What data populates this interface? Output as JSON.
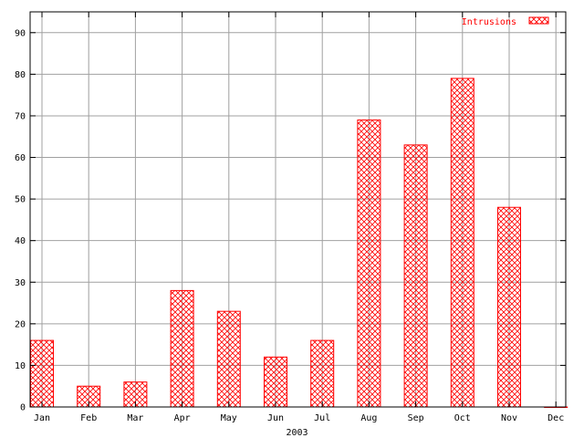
{
  "chart_data": {
    "type": "bar",
    "xlabel": "2003",
    "ylabel": "",
    "categories": [
      "Jan",
      "Feb",
      "Mar",
      "Apr",
      "May",
      "Jun",
      "Jul",
      "Aug",
      "Sep",
      "Oct",
      "Nov",
      "Dec"
    ],
    "series": [
      {
        "name": "Intrusions",
        "values": [
          16,
          5,
          6,
          28,
          23,
          12,
          16,
          69,
          63,
          79,
          48,
          0
        ]
      }
    ],
    "ylim": [
      0,
      95
    ],
    "yticks": [
      0,
      10,
      20,
      30,
      40,
      50,
      60,
      70,
      80,
      90
    ],
    "grid": true,
    "legend": "top-right",
    "colors": {
      "bar": "#ff0000",
      "grid": "#a0a0a0",
      "axis": "#000000"
    }
  }
}
